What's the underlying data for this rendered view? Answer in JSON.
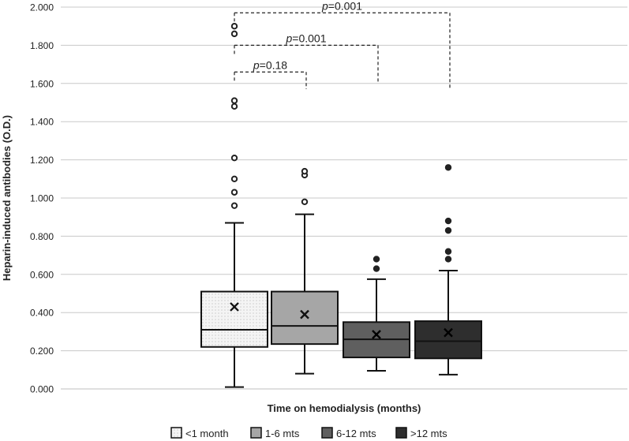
{
  "chart_data": {
    "type": "box",
    "ylabel": "Heparin-induced antibodies (O.D.)",
    "xlabel": "Time on hemodialysis (months)",
    "ylim": [
      0,
      2.0
    ],
    "yticks": [
      "0.000",
      "0.200",
      "0.400",
      "0.600",
      "0.800",
      "1.000",
      "1.200",
      "1.400",
      "1.600",
      "1.800",
      "2.000"
    ],
    "grid": true,
    "legend_position": "bottom",
    "colors": {
      "axis_text": "#222222",
      "grid": "#c8c8c8",
      "box_stroke": "#111111"
    },
    "series": [
      {
        "name": "<1 month",
        "fill": "#f2f2f2",
        "pattern": "dotted",
        "whisker_low": 0.01,
        "q1": 0.22,
        "median": 0.31,
        "q3": 0.51,
        "whisker_high": 0.87,
        "mean": 0.43,
        "outliers": [
          0.96,
          1.03,
          1.1,
          1.21,
          1.48,
          1.51,
          1.86,
          1.9
        ]
      },
      {
        "name": "1-6 mts",
        "fill": "#a6a6a6",
        "whisker_low": 0.08,
        "q1": 0.235,
        "median": 0.33,
        "q3": 0.51,
        "whisker_high": 0.915,
        "mean": 0.39,
        "outliers": [
          0.98,
          1.12,
          1.14
        ]
      },
      {
        "name": "6-12 mts",
        "fill": "#5f5f5f",
        "whisker_low": 0.095,
        "q1": 0.165,
        "median": 0.26,
        "q3": 0.35,
        "whisker_high": 0.575,
        "mean": 0.285,
        "outliers": [
          0.63,
          0.68
        ]
      },
      {
        "name": ">12 mts",
        "fill": "#2e2e2e",
        "whisker_low": 0.075,
        "q1": 0.16,
        "median": 0.25,
        "q3": 0.355,
        "whisker_high": 0.62,
        "mean": 0.295,
        "outliers": [
          0.68,
          0.72,
          0.83,
          0.88,
          1.16
        ]
      }
    ],
    "annotations": [
      {
        "italic": "p",
        "text": "=0.18",
        "from": 0,
        "to": 1,
        "y": 1.66,
        "drop_y": 1.57
      },
      {
        "italic": "p",
        "text": "=0.001",
        "from": 0,
        "to": 2,
        "y": 1.8,
        "drop_y": 1.6
      },
      {
        "italic": "p",
        "text": "=0.001",
        "from": 0,
        "to": 3,
        "y": 1.97,
        "drop_y": 1.57
      }
    ]
  }
}
